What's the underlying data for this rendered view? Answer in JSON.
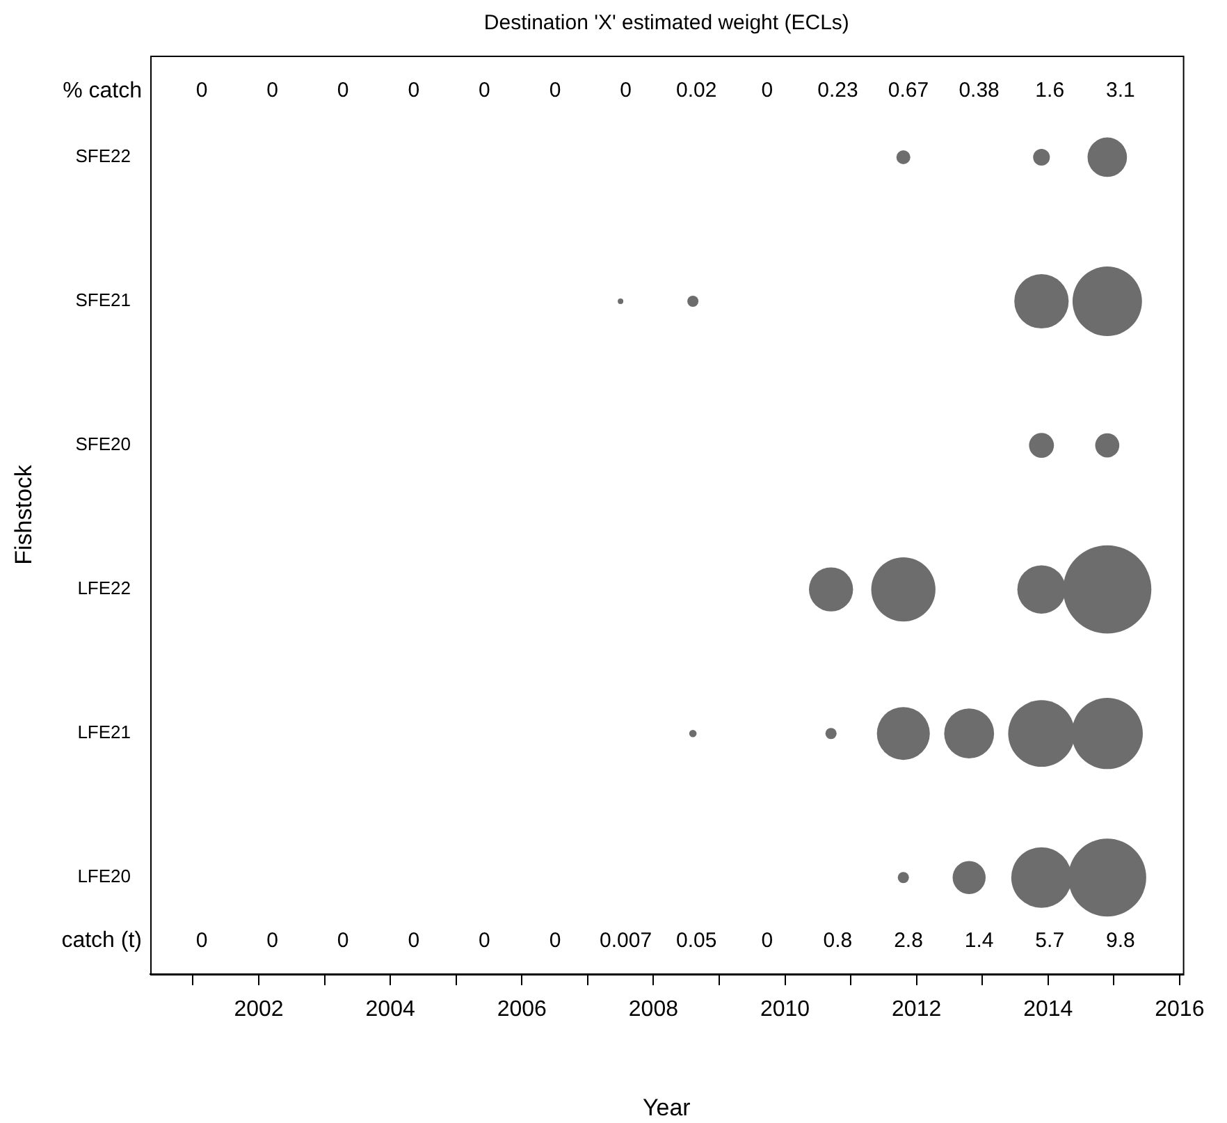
{
  "chart_data": {
    "type": "bubble",
    "orientation": "horizontal",
    "title": "Destination 'X' estimated weight (ECLs)",
    "xlabel": "Year",
    "ylabel": "Fishstock",
    "categories": [
      "SFE22",
      "SFE21",
      "SFE20",
      "LFE22",
      "LFE21",
      "LFE20"
    ],
    "xlim": [
      2000.35,
      2016.05
    ],
    "xticks": [
      {
        "value": 2001,
        "label": null
      },
      2002,
      {
        "value": 2003,
        "label": null
      },
      2004,
      {
        "value": 2005,
        "label": null
      },
      2006,
      {
        "value": 2007,
        "label": null
      },
      2008,
      {
        "value": 2009,
        "label": null
      },
      2010,
      {
        "value": 2011,
        "label": null
      },
      2012,
      {
        "value": 2013,
        "label": null
      },
      2014,
      {
        "value": 2015,
        "label": null
      },
      2016
    ],
    "series": [
      {
        "color": "#6d6d6d",
        "values": [
          null,
          2007.5,
          null,
          null,
          null,
          null
        ],
        "sizes": [
          null,
          0.004,
          null,
          null,
          null,
          null
        ]
      },
      {
        "color": "#6d6d6d",
        "values": [
          null,
          2008.6,
          null,
          null,
          2008.6,
          null
        ],
        "sizes": [
          null,
          0.016,
          null,
          null,
          0.007,
          null
        ]
      },
      {
        "color": "#6d6d6d",
        "values": [
          null,
          null,
          null,
          2010.7,
          2010.7,
          null
        ],
        "sizes": [
          null,
          null,
          null,
          0.25,
          0.016,
          null
        ]
      },
      {
        "color": "#6d6d6d",
        "values": [
          2011.8,
          null,
          null,
          2011.8,
          2011.8,
          2011.8
        ],
        "sizes": [
          0.025,
          null,
          null,
          0.53,
          0.36,
          0.016
        ]
      },
      {
        "color": "#6d6d6d",
        "values": [
          null,
          null,
          null,
          null,
          2012.8,
          2012.8
        ],
        "sizes": [
          null,
          null,
          null,
          null,
          0.32,
          0.14
        ]
      },
      {
        "color": "#6d6d6d",
        "values": [
          2013.9,
          2013.9,
          2013.9,
          2013.9,
          2013.9,
          2013.9
        ],
        "sizes": [
          0.036,
          0.38,
          0.08,
          0.3,
          0.57,
          0.47
        ]
      },
      {
        "color": "#6d6d6d",
        "values": [
          2014.9,
          2014.9,
          2014.9,
          2014.9,
          2014.9,
          2014.9
        ],
        "sizes": [
          0.2,
          0.62,
          0.075,
          1,
          0.65,
          0.78
        ]
      }
    ],
    "annotations": [
      "% catch",
      "0",
      "0",
      "0",
      "0",
      "0",
      "0",
      "0",
      "0.02",
      "0",
      "0.23",
      "0.67",
      "0.38",
      "1.6",
      "3.1",
      "catch (t)",
      "0",
      "0",
      "0",
      "0",
      "0",
      "0",
      "0.007",
      "0.05",
      "0",
      "0.8",
      "2.8",
      "1.4",
      "5.7",
      "9.8"
    ]
  }
}
